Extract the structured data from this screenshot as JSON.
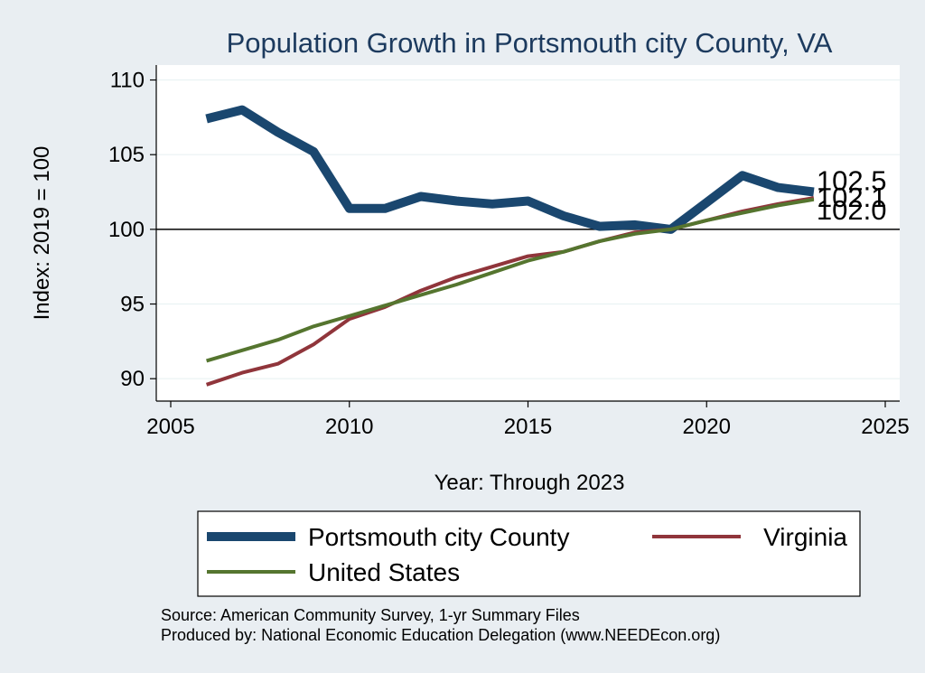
{
  "chart_data": {
    "type": "line",
    "title": "Population Growth in Portsmouth city County, VA",
    "xlabel": "Year: Through 2023",
    "ylabel": "Index: 2019 = 100",
    "xlim": [
      2005,
      2025
    ],
    "ylim": [
      88.5,
      111
    ],
    "x_ticks": [
      2005,
      2010,
      2015,
      2020,
      2025
    ],
    "y_ticks": [
      90,
      95,
      100,
      105,
      110
    ],
    "reference_line": 100,
    "grid": true,
    "legend_position": "bottom",
    "x": [
      2006,
      2007,
      2008,
      2009,
      2010,
      2011,
      2012,
      2013,
      2014,
      2015,
      2016,
      2017,
      2018,
      2019,
      2020,
      2021,
      2022,
      2023
    ],
    "series": [
      {
        "name": "Portsmouth city  County",
        "color": "#1a476f",
        "values": [
          107.4,
          108.0,
          106.5,
          105.2,
          101.4,
          101.4,
          102.2,
          101.9,
          101.7,
          101.9,
          100.9,
          100.2,
          100.3,
          100.0,
          101.8,
          103.6,
          102.8,
          102.5
        ],
        "end_label": "102.5"
      },
      {
        "name": "Virginia",
        "color": "#90353b",
        "values": [
          89.6,
          90.4,
          91.0,
          92.3,
          94.0,
          94.8,
          95.9,
          96.8,
          97.5,
          98.2,
          98.5,
          99.2,
          99.8,
          100.0,
          100.6,
          101.2,
          101.7,
          102.1
        ],
        "end_label": "102.1"
      },
      {
        "name": "United States",
        "color": "#55752f",
        "values": [
          91.2,
          91.9,
          92.6,
          93.5,
          94.2,
          94.9,
          95.6,
          96.3,
          97.1,
          97.9,
          98.5,
          99.2,
          99.7,
          100.0,
          100.6,
          101.1,
          101.6,
          102.0
        ],
        "end_label": "102.0"
      }
    ]
  },
  "notes": {
    "source": "Source: American Community Survey, 1-yr Summary Files",
    "producer": "Produced by: National Economic Education Delegation (www.NEEDEcon.org)"
  }
}
